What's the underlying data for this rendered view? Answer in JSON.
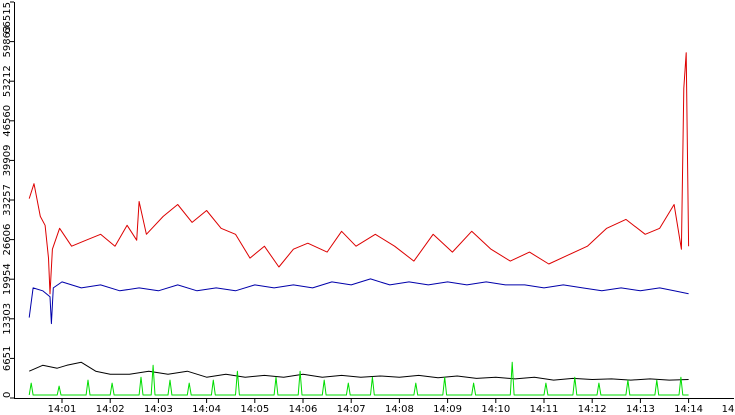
{
  "chart_data": {
    "type": "line",
    "x_tick_labels": [
      "14:01",
      "14:02",
      "14:03",
      "14:04",
      "14:05",
      "14:06",
      "14:07",
      "14:08",
      "14:09",
      "14:10",
      "14:11",
      "14:12",
      "14:13",
      "14:14",
      "14"
    ],
    "y_tick_labels": [
      "0",
      "6651",
      "13303",
      "19954",
      "26606",
      "33257",
      "39909",
      "46560",
      "53212",
      "59863",
      "66515"
    ],
    "y_ticks": [
      0,
      6651,
      13303,
      19954,
      26606,
      33257,
      39909,
      46560,
      53212,
      59863,
      66515
    ],
    "ylim": [
      0,
      66515
    ],
    "x_range_minutes": [
      14.32,
      28.0
    ],
    "grid": false,
    "colors": {
      "red": "#dd0000",
      "blue": "#0000aa",
      "black": "#000000",
      "green": "#00dd00"
    },
    "series": [
      {
        "color": "#dd0000",
        "x": [
          14.32,
          14.42,
          14.55,
          14.65,
          14.72,
          14.75,
          14.8,
          14.95,
          15.2,
          15.5,
          15.8,
          16.1,
          16.35,
          16.55,
          16.6,
          16.75,
          17.1,
          17.4,
          17.7,
          18.0,
          18.3,
          18.6,
          18.9,
          19.2,
          19.5,
          19.8,
          20.1,
          20.5,
          20.8,
          21.1,
          21.5,
          21.9,
          22.3,
          22.7,
          23.1,
          23.5,
          23.9,
          24.3,
          24.7,
          25.1,
          25.5,
          25.9,
          26.3,
          26.7,
          27.1,
          27.4,
          27.7,
          27.85,
          27.9,
          27.95,
          28.0
        ],
        "y": [
          33500,
          36000,
          30500,
          29000,
          23500,
          17500,
          25000,
          28500,
          25500,
          26500,
          27500,
          25500,
          29000,
          26500,
          33000,
          27500,
          30500,
          32500,
          29500,
          31500,
          28500,
          27500,
          23500,
          25500,
          22000,
          25000,
          26000,
          24500,
          28000,
          25500,
          27500,
          25500,
          23000,
          27500,
          24500,
          28000,
          25000,
          23000,
          24500,
          22500,
          24000,
          25500,
          28500,
          30000,
          27500,
          28500,
          32500,
          25000,
          52000,
          58000,
          25500
        ]
      },
      {
        "color": "#0000aa",
        "x": [
          14.32,
          14.4,
          14.6,
          14.75,
          14.78,
          14.82,
          15.0,
          15.4,
          15.8,
          16.2,
          16.6,
          17.0,
          17.4,
          17.8,
          18.2,
          18.6,
          19.0,
          19.4,
          19.8,
          20.2,
          20.6,
          21.0,
          21.4,
          21.8,
          22.2,
          22.6,
          23.0,
          23.4,
          23.8,
          24.2,
          24.6,
          25.0,
          25.4,
          25.8,
          26.2,
          26.6,
          27.0,
          27.4,
          27.7,
          28.0
        ],
        "y": [
          13500,
          18500,
          18000,
          17000,
          12500,
          18500,
          19500,
          18500,
          19000,
          18000,
          18500,
          18000,
          19000,
          18000,
          18500,
          18000,
          19000,
          18500,
          19000,
          18500,
          19500,
          19000,
          20000,
          19000,
          19500,
          19000,
          19500,
          19000,
          19500,
          19000,
          19000,
          18500,
          19000,
          18500,
          18000,
          18500,
          18000,
          18500,
          18000,
          17500
        ]
      },
      {
        "color": "#000000",
        "x": [
          14.32,
          14.6,
          14.9,
          15.1,
          15.4,
          15.7,
          16.0,
          16.4,
          16.8,
          17.2,
          17.6,
          18.0,
          18.4,
          18.8,
          19.2,
          19.6,
          20.0,
          20.4,
          20.8,
          21.2,
          21.6,
          22.0,
          22.4,
          22.8,
          23.2,
          23.6,
          24.0,
          24.4,
          24.8,
          25.2,
          25.6,
          26.0,
          26.4,
          26.8,
          27.2,
          27.6,
          28.0
        ],
        "y": [
          4500,
          5500,
          5000,
          5500,
          6000,
          4500,
          4000,
          4000,
          4500,
          4000,
          4500,
          3500,
          4000,
          3500,
          3800,
          3500,
          4000,
          3500,
          3800,
          3500,
          3700,
          3500,
          3800,
          3400,
          3700,
          3300,
          3500,
          3200,
          3500,
          3000,
          3300,
          3100,
          3200,
          3000,
          3200,
          3000,
          3100
        ]
      },
      {
        "color": "#00dd00",
        "x": [
          14.32,
          14.36,
          14.4,
          14.9,
          14.94,
          14.98,
          15.5,
          15.54,
          15.58,
          16.0,
          16.04,
          16.08,
          16.6,
          16.64,
          16.68,
          16.85,
          16.89,
          16.93,
          17.2,
          17.24,
          17.28,
          17.6,
          17.64,
          17.68,
          18.1,
          18.14,
          18.18,
          18.6,
          18.64,
          18.68,
          19.4,
          19.44,
          19.48,
          19.9,
          19.94,
          19.98,
          20.4,
          20.44,
          20.48,
          20.9,
          20.94,
          20.98,
          21.4,
          21.44,
          21.48,
          22.3,
          22.34,
          22.38,
          22.9,
          22.94,
          22.98,
          23.5,
          23.54,
          23.58,
          24.3,
          24.34,
          24.38,
          25.0,
          25.04,
          25.08,
          25.6,
          25.64,
          25.68,
          26.1,
          26.14,
          26.18,
          26.7,
          26.74,
          26.78,
          27.3,
          27.34,
          27.38,
          27.8,
          27.84,
          27.88,
          28.0
        ],
        "y": [
          500,
          2500,
          500,
          500,
          2000,
          500,
          500,
          3000,
          500,
          500,
          2500,
          500,
          500,
          3500,
          500,
          500,
          5500,
          500,
          500,
          3000,
          500,
          500,
          2500,
          500,
          500,
          3000,
          500,
          500,
          4500,
          500,
          500,
          3500,
          500,
          500,
          4500,
          500,
          500,
          3000,
          500,
          500,
          2500,
          500,
          500,
          3500,
          500,
          500,
          2500,
          500,
          500,
          3500,
          500,
          500,
          2500,
          500,
          500,
          6000,
          500,
          500,
          2500,
          500,
          500,
          3500,
          500,
          500,
          2500,
          500,
          500,
          3000,
          500,
          500,
          3000,
          500,
          500,
          3500,
          500,
          500
        ]
      }
    ]
  }
}
